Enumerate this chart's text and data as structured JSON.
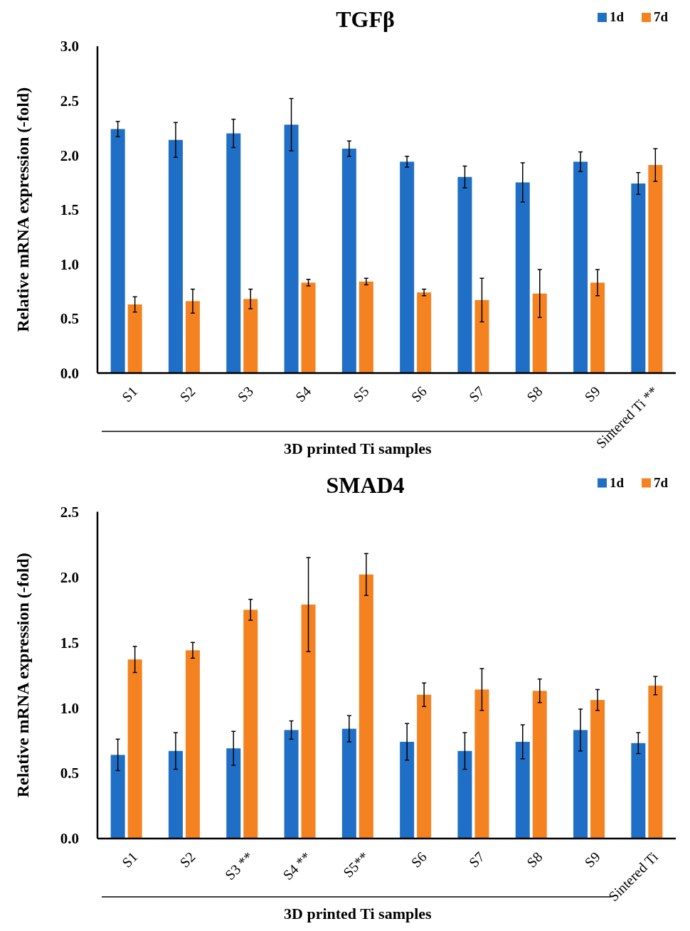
{
  "chart_data": [
    {
      "type": "bar",
      "title": "TGFβ",
      "ylabel": "Relative mRNA expression (-fold)",
      "xlabel": "3D printed Ti samples",
      "categories": [
        "S1",
        "S2",
        "S3",
        "S4",
        "S5",
        "S6",
        "S7",
        "S8",
        "S9",
        "Sintered Ti **"
      ],
      "series": [
        {
          "name": "1d",
          "color": "#1f6fc6",
          "values": [
            2.24,
            2.14,
            2.2,
            2.28,
            2.06,
            1.94,
            1.8,
            1.75,
            1.94,
            1.74
          ],
          "errors": [
            0.07,
            0.16,
            0.13,
            0.24,
            0.07,
            0.05,
            0.1,
            0.18,
            0.09,
            0.1
          ]
        },
        {
          "name": "7d",
          "color": "#f58220",
          "values": [
            0.63,
            0.66,
            0.68,
            0.83,
            0.84,
            0.74,
            0.67,
            0.73,
            0.83,
            1.91
          ],
          "errors": [
            0.07,
            0.11,
            0.09,
            0.03,
            0.03,
            0.03,
            0.2,
            0.22,
            0.12,
            0.15
          ]
        }
      ],
      "ylim": [
        0,
        3
      ],
      "yticks": [
        {
          "value": 0,
          "label": "0.0"
        },
        {
          "value": 0.5,
          "label": "0.5"
        },
        {
          "value": 1,
          "label": "1.0"
        },
        {
          "value": 1.5,
          "label": "1.5"
        },
        {
          "value": 2,
          "label": "2.0"
        },
        {
          "value": 2.5,
          "label": "2.5"
        },
        {
          "value": 3,
          "label": "3.0"
        }
      ],
      "legend": "top right"
    },
    {
      "type": "bar",
      "title": "SMAD4",
      "ylabel": "Relative mRNA expression (-fold)",
      "xlabel": "3D printed Ti samples",
      "categories": [
        "S1",
        "S2",
        "S3 **",
        "S4 **",
        "S5**",
        "S6",
        "S7",
        "S8",
        "S9",
        "Sintered Ti"
      ],
      "series": [
        {
          "name": "1d",
          "color": "#1f6fc6",
          "values": [
            0.64,
            0.67,
            0.69,
            0.83,
            0.84,
            0.74,
            0.67,
            0.74,
            0.83,
            0.73
          ],
          "errors": [
            0.12,
            0.14,
            0.13,
            0.07,
            0.1,
            0.14,
            0.14,
            0.13,
            0.16,
            0.08
          ]
        },
        {
          "name": "7d",
          "color": "#f58220",
          "values": [
            1.37,
            1.44,
            1.75,
            1.79,
            2.02,
            1.1,
            1.14,
            1.13,
            1.06,
            1.17
          ],
          "errors": [
            0.1,
            0.06,
            0.08,
            0.36,
            0.16,
            0.09,
            0.16,
            0.09,
            0.08,
            0.07
          ]
        }
      ],
      "ylim": [
        0,
        2.5
      ],
      "yticks": [
        {
          "value": 0,
          "label": "0.0"
        },
        {
          "value": 0.5,
          "label": "0.5"
        },
        {
          "value": 1,
          "label": "1.0"
        },
        {
          "value": 1.5,
          "label": "1.5"
        },
        {
          "value": 2,
          "label": "2.0"
        },
        {
          "value": 2.5,
          "label": "2.5"
        }
      ],
      "legend": "top right"
    }
  ]
}
